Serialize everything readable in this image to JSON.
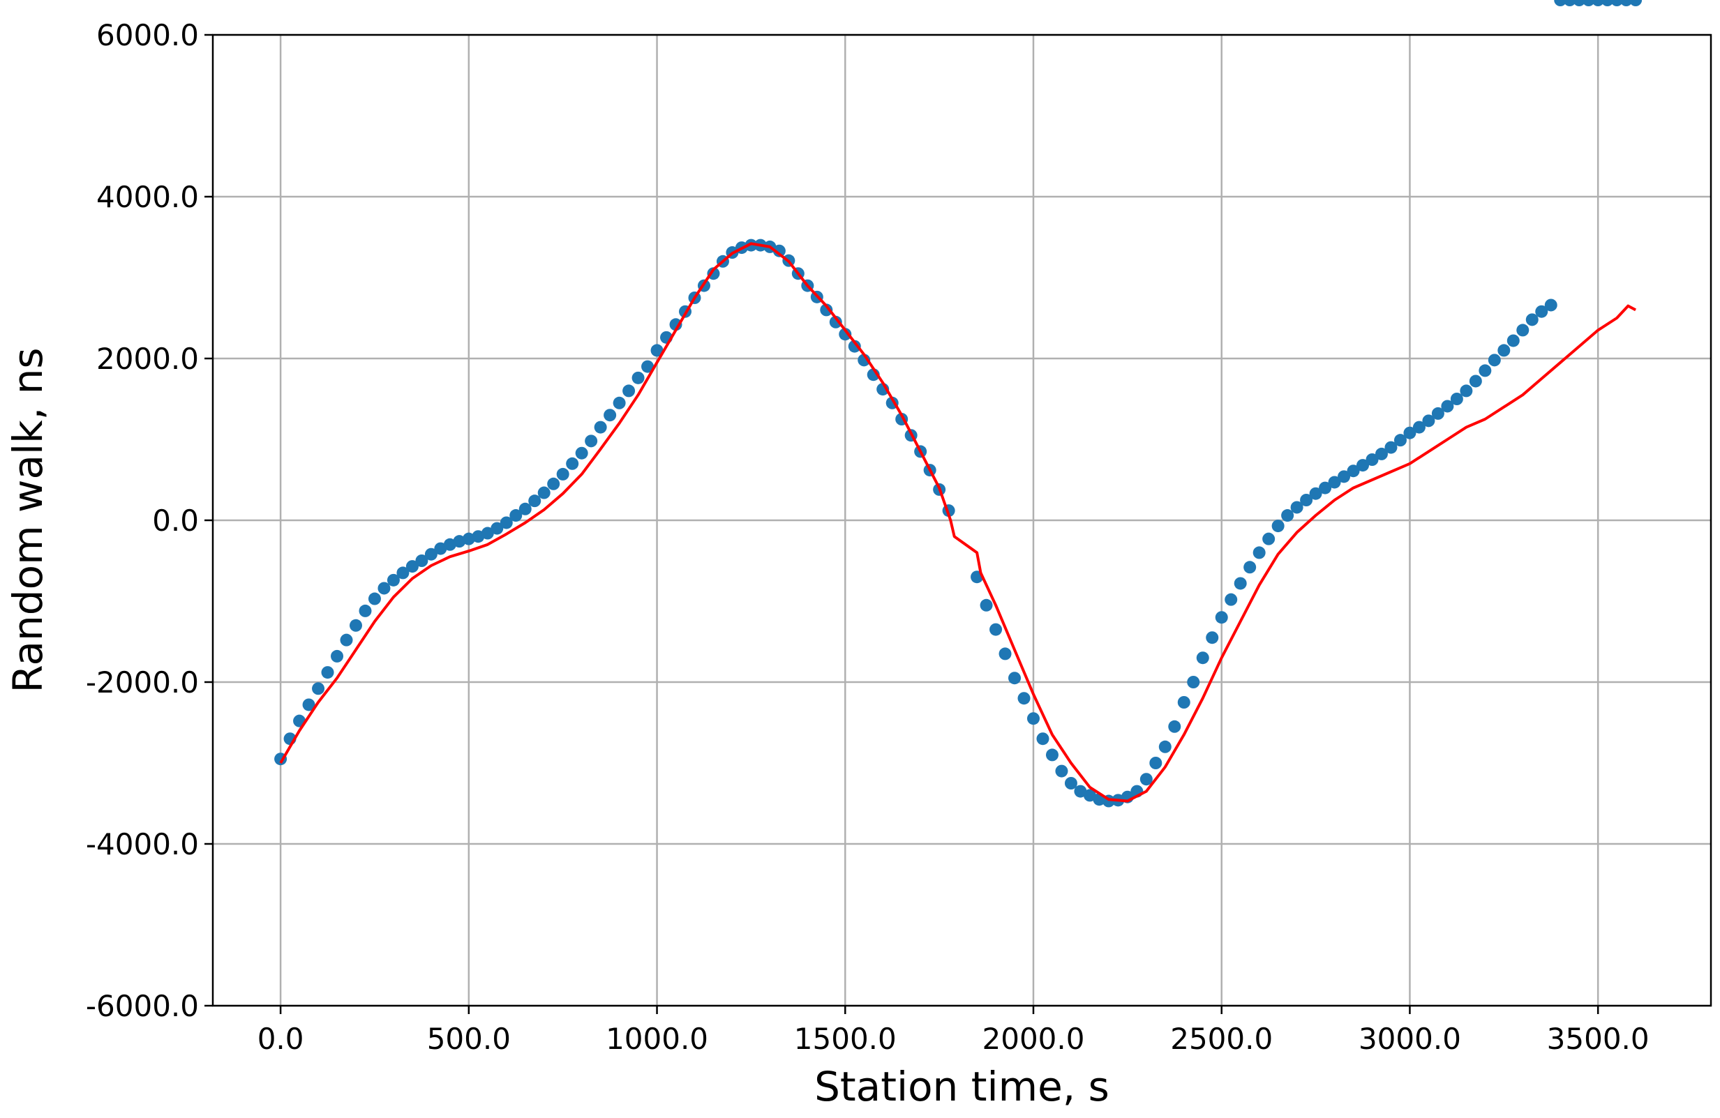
{
  "chart_data": {
    "type": "scatter",
    "title": "",
    "xlabel": "Station time, s",
    "ylabel": "Random walk, ns",
    "xlim": [
      -180,
      3800
    ],
    "ylim": [
      -6000,
      6000
    ],
    "x_ticks": [
      0,
      500,
      1000,
      1500,
      2000,
      2500,
      3000,
      3500
    ],
    "x_tick_labels": [
      "0.0",
      "500.0",
      "1000.0",
      "1500.0",
      "2000.0",
      "2500.0",
      "3000.0",
      "3500.0"
    ],
    "y_ticks": [
      -6000,
      -4000,
      -2000,
      0,
      2000,
      4000,
      6000
    ],
    "y_tick_labels": [
      "-6000.0",
      "-4000.0",
      "-2000.0",
      "0.0",
      "2000.0",
      "4000.0",
      "6000.0"
    ],
    "grid": true,
    "colors": {
      "scatter": "#1f77b4",
      "trend": "#ff0000"
    },
    "series": [
      {
        "kind": "scatter",
        "points_x": [
          0,
          25,
          50,
          75,
          100,
          125,
          150,
          175,
          200,
          225,
          250,
          275,
          300,
          325,
          350,
          375,
          400,
          425,
          450,
          475,
          500,
          525,
          550,
          575,
          600,
          625,
          650,
          675,
          700,
          725,
          750,
          775,
          800,
          825,
          850,
          875,
          900,
          925,
          950,
          975,
          1000,
          1025,
          1050,
          1075,
          1100,
          1125,
          1150,
          1175,
          1200,
          1225,
          1250,
          1275,
          1300,
          1325,
          1350,
          1375,
          1400,
          1425,
          1450,
          1475,
          1500,
          1525,
          1550,
          1575,
          1600,
          1625,
          1650,
          1675,
          1700,
          1725,
          1750,
          1775,
          1850,
          1875,
          1900,
          1925,
          1950,
          1975,
          2000,
          2025,
          2050,
          2075,
          2100,
          2125,
          2150,
          2175,
          2200,
          2225,
          2250,
          2275,
          2300,
          2325,
          2350,
          2375,
          2400,
          2425,
          2450,
          2475,
          2500,
          2525,
          2550,
          2575,
          2600,
          2625,
          2650,
          2675,
          2700,
          2725,
          2750,
          2775,
          2800,
          2825,
          2850,
          2875,
          2900,
          2925,
          2950,
          2975,
          3000,
          3025,
          3050,
          3075,
          3100,
          3125,
          3150,
          3175,
          3200,
          3225,
          3250,
          3275,
          3300,
          3325,
          3350,
          3375,
          3400,
          3425,
          3450,
          3475,
          3500,
          3525,
          3550,
          3575,
          3600
        ],
        "points_y": [
          -2950,
          -2700,
          -2480,
          -2280,
          -2080,
          -1880,
          -1680,
          -1480,
          -1300,
          -1120,
          -970,
          -840,
          -740,
          -650,
          -570,
          -500,
          -420,
          -350,
          -300,
          -260,
          -230,
          -200,
          -160,
          -100,
          -30,
          60,
          140,
          240,
          340,
          450,
          570,
          700,
          830,
          980,
          1150,
          1300,
          1450,
          1600,
          1760,
          1900,
          2100,
          2260,
          2420,
          2580,
          2750,
          2900,
          3050,
          3200,
          3310,
          3370,
          3400,
          3400,
          3380,
          3330,
          3210,
          3050,
          2900,
          2760,
          2600,
          2450,
          2300,
          2150,
          1980,
          1800,
          1620,
          1450,
          1250,
          1050,
          850,
          620,
          380,
          120,
          -700,
          -1050,
          -1350,
          -1650,
          -1950,
          -2200,
          -2450,
          -2700,
          -2900,
          -3100,
          -3250,
          -3350,
          -3400,
          -3450,
          -3470,
          -3460,
          -3420,
          -3350,
          -3200,
          -3000,
          -2800,
          -2550,
          -2250,
          -2000,
          -1700,
          -1450,
          -1200,
          -980,
          -780,
          -580,
          -400,
          -230,
          -70,
          60,
          160,
          250,
          330,
          400,
          470,
          540,
          610,
          680,
          750,
          820,
          900,
          990,
          1080,
          1150,
          1230,
          1320,
          1410,
          1500,
          1600,
          1720,
          1850,
          1980,
          2100,
          2220,
          2350,
          2480,
          2580,
          2660
        ]
      },
      {
        "kind": "line",
        "x": [
          0,
          50,
          100,
          150,
          200,
          250,
          300,
          350,
          400,
          450,
          500,
          550,
          600,
          650,
          700,
          750,
          800,
          850,
          900,
          950,
          1000,
          1050,
          1100,
          1150,
          1200,
          1250,
          1300,
          1350,
          1400,
          1450,
          1500,
          1550,
          1600,
          1650,
          1700,
          1750,
          1780,
          1790,
          1850,
          1860,
          1900,
          1950,
          2000,
          2050,
          2100,
          2150,
          2200,
          2250,
          2300,
          2350,
          2400,
          2450,
          2500,
          2550,
          2600,
          2650,
          2700,
          2750,
          2800,
          2850,
          2900,
          2950,
          3000,
          3050,
          3100,
          3150,
          3200,
          3250,
          3300,
          3350,
          3400,
          3450,
          3500,
          3550,
          3580,
          3600
        ],
        "y": [
          -3000,
          -2600,
          -2250,
          -1950,
          -1600,
          -1250,
          -950,
          -720,
          -560,
          -450,
          -380,
          -300,
          -170,
          -30,
          130,
          330,
          570,
          880,
          1200,
          1550,
          1950,
          2350,
          2750,
          3100,
          3300,
          3420,
          3380,
          3200,
          2900,
          2650,
          2350,
          2050,
          1700,
          1300,
          850,
          400,
          0,
          -200,
          -400,
          -650,
          -1050,
          -1600,
          -2150,
          -2650,
          -3000,
          -3300,
          -3450,
          -3470,
          -3350,
          -3050,
          -2650,
          -2200,
          -1700,
          -1250,
          -800,
          -420,
          -150,
          60,
          250,
          400,
          500,
          600,
          700,
          850,
          1000,
          1150,
          1250,
          1400,
          1550,
          1750,
          1950,
          2150,
          2350,
          2500,
          2650,
          2600
        ]
      }
    ]
  }
}
